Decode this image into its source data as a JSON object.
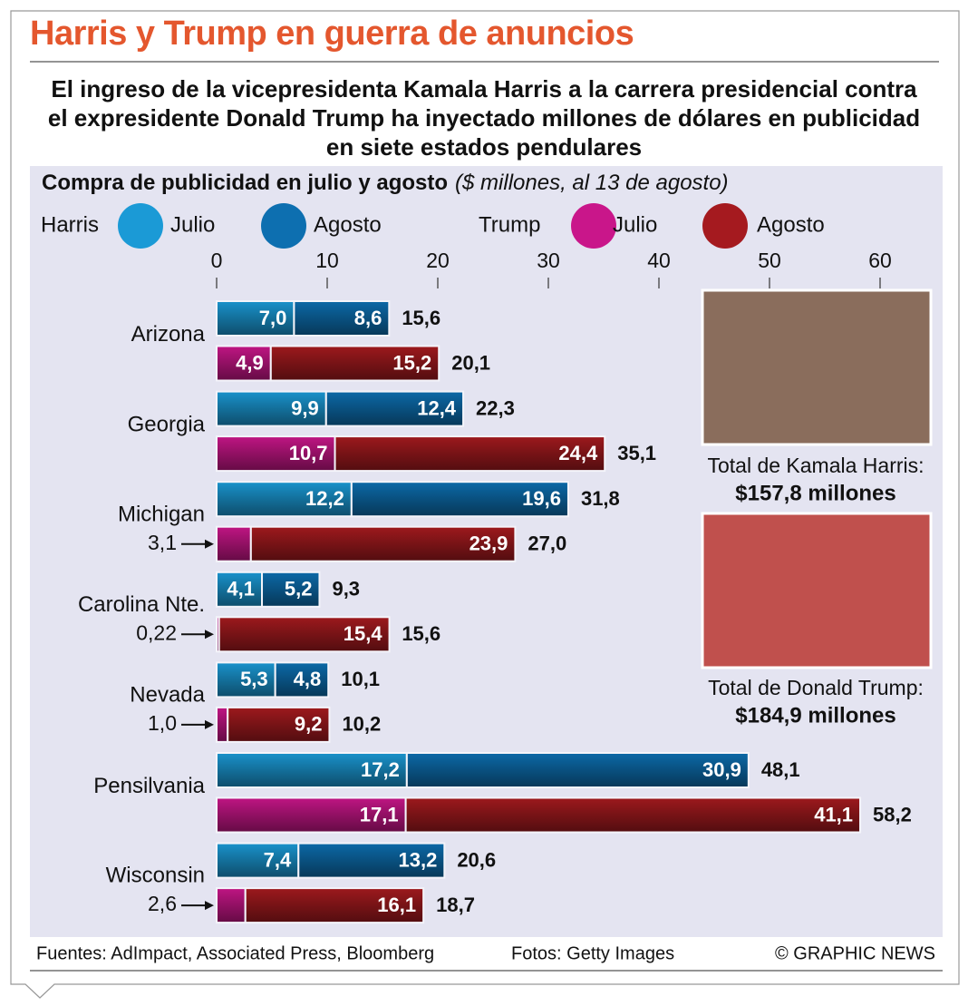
{
  "chart_data": {
    "type": "bar",
    "orientation": "horizontal",
    "stacked": true,
    "title": "Harris y Trump en guerra de anuncios",
    "subtitle": "El ingreso de la vicepresidenta Kamala Harris a la carrera presidencial contra el expresidente Donald Trump ha inyectado millones de dólares en publicidad en siete estados pendulares",
    "chart_title": "Compra de publicidad en julio y agosto",
    "units": "($ millones, al 13 de agosto)",
    "categories": [
      "Arizona",
      "Georgia",
      "Michigan",
      "Carolina Nte.",
      "Nevada",
      "Pensilvania",
      "Wisconsin"
    ],
    "groups": [
      {
        "name": "Harris",
        "series": [
          {
            "name": "Julio",
            "color": "#1b9ad6",
            "values": [
              7.0,
              9.9,
              12.2,
              4.1,
              5.3,
              17.2,
              7.4
            ],
            "value_labels": [
              "7,0",
              "9,9",
              "12,2",
              "4,1",
              "5,3",
              "17,2",
              "7,4"
            ]
          },
          {
            "name": "Agosto",
            "color": "#0d6fb0",
            "values": [
              8.6,
              12.4,
              19.6,
              5.2,
              4.8,
              30.9,
              13.2
            ],
            "value_labels": [
              "8,6",
              "12,4",
              "19,6",
              "5,2",
              "4,8",
              "30,9",
              "13,2"
            ]
          }
        ],
        "totals": [
          15.6,
          22.3,
          31.8,
          9.3,
          10.1,
          48.1,
          20.6
        ],
        "total_labels": [
          "15,6",
          "22,3",
          "31,8",
          "9,3",
          "10,1",
          "48,1",
          "20,6"
        ]
      },
      {
        "name": "Trump",
        "series": [
          {
            "name": "Julio",
            "color": "#c9168a",
            "values": [
              4.9,
              10.7,
              3.1,
              0.22,
              1.0,
              17.1,
              2.6
            ],
            "value_labels": [
              "4,9",
              "10,7",
              "3,1",
              "0,22",
              "1,0",
              "17,1",
              "2,6"
            ]
          },
          {
            "name": "Agosto",
            "color": "#a51a1f",
            "values": [
              15.2,
              24.4,
              23.9,
              15.4,
              9.2,
              41.1,
              16.1
            ],
            "value_labels": [
              "15,2",
              "24,4",
              "23,9",
              "15,4",
              "9,2",
              "41,1",
              "16,1"
            ]
          }
        ],
        "totals": [
          20.1,
          35.1,
          27.0,
          15.6,
          10.2,
          58.2,
          18.7
        ],
        "total_labels": [
          "20,1",
          "35,1",
          "27,0",
          "15,6",
          "10,2",
          "58,2",
          "18,7"
        ]
      }
    ],
    "xlim": [
      0,
      60
    ],
    "xticks": [
      0,
      10,
      20,
      30,
      40,
      50,
      60
    ],
    "annotations": {
      "harris_caption": "Total de Kamala Harris:",
      "harris_total": "$157,8 millones",
      "trump_caption": "Total de Donald Trump:",
      "trump_total": "$184,9 millones"
    },
    "footer": {
      "sources": "Fuentes: AdImpact, Associated Press, Bloomberg",
      "photos": "Fotos: Getty Images",
      "credit": "© GRAPHIC NEWS"
    }
  }
}
